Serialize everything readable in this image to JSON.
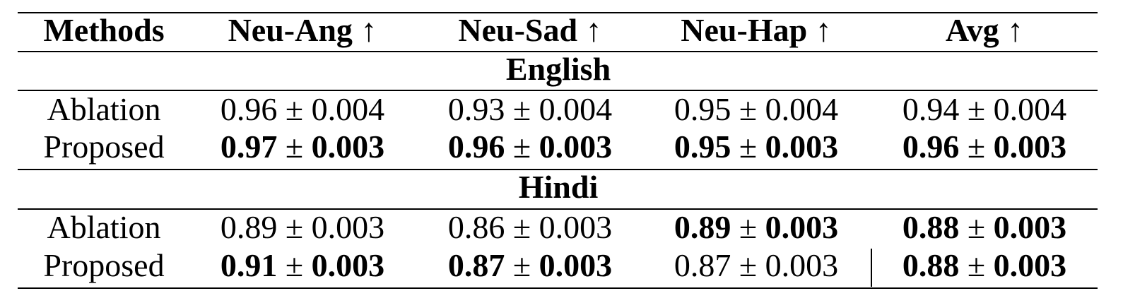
{
  "pm": "±",
  "table": {
    "header": [
      "Methods",
      "Neu-Ang ↑",
      "Neu-Sad ↑",
      "Neu-Hap ↑",
      "Avg ↑"
    ],
    "sections": [
      {
        "title": "English",
        "rows": [
          {
            "method": "Ablation",
            "cells": [
              {
                "mean": "0.96",
                "std": "0.004",
                "bold": false
              },
              {
                "mean": "0.93",
                "std": "0.004",
                "bold": false
              },
              {
                "mean": "0.95",
                "std": "0.004",
                "bold": false
              },
              {
                "mean": "0.94",
                "std": "0.004",
                "bold": false
              }
            ]
          },
          {
            "method": "Proposed",
            "cells": [
              {
                "mean": "0.97",
                "std": "0.003",
                "bold": true
              },
              {
                "mean": "0.96",
                "std": "0.003",
                "bold": true
              },
              {
                "mean": "0.95",
                "std": "0.003",
                "bold": true
              },
              {
                "mean": "0.96",
                "std": "0.003",
                "bold": true
              }
            ]
          }
        ]
      },
      {
        "title": "Hindi",
        "rows": [
          {
            "method": "Ablation",
            "cells": [
              {
                "mean": "0.89",
                "std": "0.003",
                "bold": false
              },
              {
                "mean": "0.86",
                "std": "0.003",
                "bold": false
              },
              {
                "mean": "0.89",
                "std": "0.003",
                "bold": true
              },
              {
                "mean": "0.88",
                "std": "0.003",
                "bold": true
              }
            ]
          },
          {
            "method": "Proposed",
            "cells": [
              {
                "mean": "0.91",
                "std": "0.003",
                "bold": true
              },
              {
                "mean": "0.87",
                "std": "0.003",
                "bold": true
              },
              {
                "mean": "0.87",
                "std": "0.003",
                "bold": false
              },
              {
                "mean": "0.88",
                "std": "0.003",
                "bold": true
              }
            ]
          }
        ]
      }
    ]
  }
}
